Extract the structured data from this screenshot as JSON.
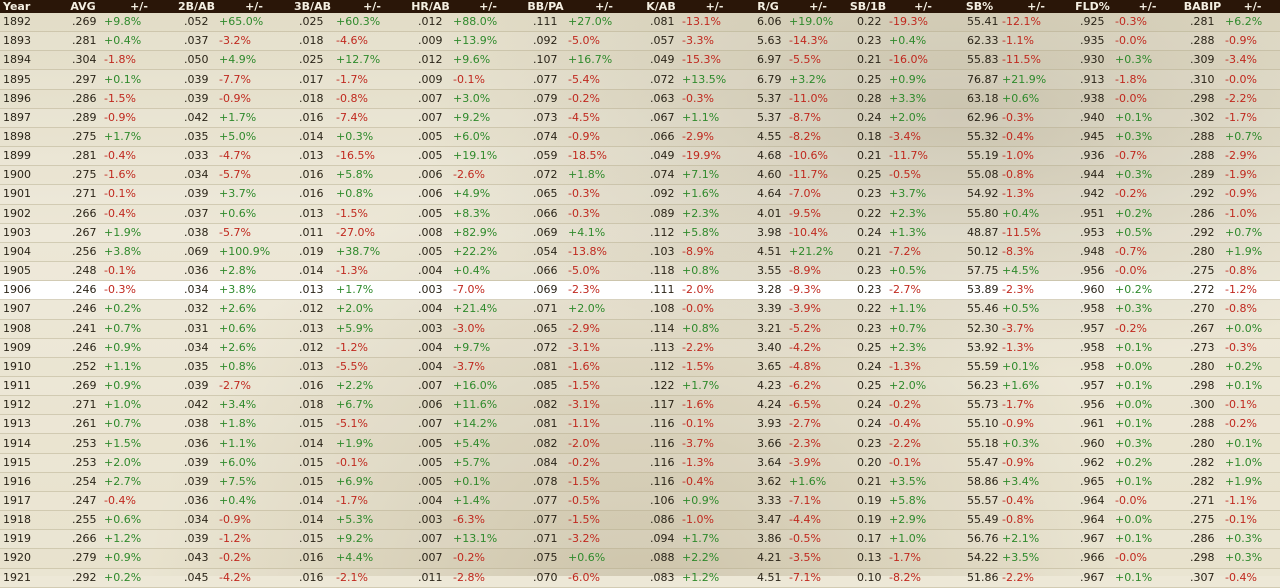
{
  "columns": [
    "Year",
    "AVG",
    "+/-",
    "2B/AB",
    "+/-",
    "3B/AB",
    "+/-",
    "HR/AB",
    "+/-",
    "BB/PA",
    "+/-",
    "K/AB",
    "+/-",
    "R/G",
    "+/-",
    "SB/1B",
    "+/-",
    "SB%",
    "+/-",
    "FLD%",
    "+/-",
    "BABIP",
    "+/-"
  ],
  "highlight_year": "1906",
  "colors": {
    "positive": "#2f8a2c",
    "negative": "#c0281e",
    "header_bg": "#2a1608"
  },
  "rows": [
    [
      "1892",
      ".269",
      "+9.8%",
      ".052",
      "+65.0%",
      ".025",
      "+60.3%",
      ".012",
      "+88.0%",
      ".111",
      "+27.0%",
      ".081",
      "-13.1%",
      "6.06",
      "+19.0%",
      "0.22",
      "-19.3%",
      "55.41",
      "-12.1%",
      ".925",
      "-0.3%",
      ".281",
      "+6.2%"
    ],
    [
      "1893",
      ".281",
      "+0.4%",
      ".037",
      "-3.2%",
      ".018",
      "-4.6%",
      ".009",
      "+13.9%",
      ".092",
      "-5.0%",
      ".057",
      "-3.3%",
      "5.63",
      "-14.3%",
      "0.23",
      "+0.4%",
      "62.33",
      "-1.1%",
      ".935",
      "-0.0%",
      ".288",
      "-0.9%"
    ],
    [
      "1894",
      ".304",
      "-1.8%",
      ".050",
      "+4.9%",
      ".025",
      "+12.7%",
      ".012",
      "+9.6%",
      ".107",
      "+16.7%",
      ".049",
      "-15.3%",
      "6.97",
      "-5.5%",
      "0.21",
      "-16.0%",
      "55.83",
      "-11.5%",
      ".930",
      "+0.3%",
      ".309",
      "-3.4%"
    ],
    [
      "1895",
      ".297",
      "+0.1%",
      ".039",
      "-7.7%",
      ".017",
      "-1.7%",
      ".009",
      "-0.1%",
      ".077",
      "-5.4%",
      ".072",
      "+13.5%",
      "6.79",
      "+3.2%",
      "0.25",
      "+0.9%",
      "76.87",
      "+21.9%",
      ".913",
      "-1.8%",
      ".310",
      "-0.0%"
    ],
    [
      "1896",
      ".286",
      "-1.5%",
      ".039",
      "-0.9%",
      ".018",
      "-0.8%",
      ".007",
      "+3.0%",
      ".079",
      "-0.2%",
      ".063",
      "-0.3%",
      "5.37",
      "-11.0%",
      "0.28",
      "+3.3%",
      "63.18",
      "+0.6%",
      ".938",
      "-0.0%",
      ".298",
      "-2.2%"
    ],
    [
      "1897",
      ".289",
      "-0.9%",
      ".042",
      "+1.7%",
      ".016",
      "-7.4%",
      ".007",
      "+9.2%",
      ".073",
      "-4.5%",
      ".067",
      "+1.1%",
      "5.37",
      "-8.7%",
      "0.24",
      "+2.0%",
      "62.96",
      "-0.3%",
      ".940",
      "+0.1%",
      ".302",
      "-1.7%"
    ],
    [
      "1898",
      ".275",
      "+1.7%",
      ".035",
      "+5.0%",
      ".014",
      "+0.3%",
      ".005",
      "+6.0%",
      ".074",
      "-0.9%",
      ".066",
      "-2.9%",
      "4.55",
      "-8.2%",
      "0.18",
      "-3.4%",
      "55.32",
      "-0.4%",
      ".945",
      "+0.3%",
      ".288",
      "+0.7%"
    ],
    [
      "1899",
      ".281",
      "-0.4%",
      ".033",
      "-4.7%",
      ".013",
      "-16.5%",
      ".005",
      "+19.1%",
      ".059",
      "-18.5%",
      ".049",
      "-19.9%",
      "4.68",
      "-10.6%",
      "0.21",
      "-11.7%",
      "55.19",
      "-1.0%",
      ".936",
      "-0.7%",
      ".288",
      "-2.9%"
    ],
    [
      "1900",
      ".275",
      "-1.6%",
      ".034",
      "-5.7%",
      ".016",
      "+5.8%",
      ".006",
      "-2.6%",
      ".072",
      "+1.8%",
      ".074",
      "+7.1%",
      "4.60",
      "-11.7%",
      "0.25",
      "-0.5%",
      "55.08",
      "-0.8%",
      ".944",
      "+0.3%",
      ".289",
      "-1.9%"
    ],
    [
      "1901",
      ".271",
      "-0.1%",
      ".039",
      "+3.7%",
      ".016",
      "+0.8%",
      ".006",
      "+4.9%",
      ".065",
      "-0.3%",
      ".092",
      "+1.6%",
      "4.64",
      "-7.0%",
      "0.23",
      "+3.7%",
      "54.92",
      "-1.3%",
      ".942",
      "-0.2%",
      ".292",
      "-0.9%"
    ],
    [
      "1902",
      ".266",
      "-0.4%",
      ".037",
      "+0.6%",
      ".013",
      "-1.5%",
      ".005",
      "+8.3%",
      ".066",
      "-0.3%",
      ".089",
      "+2.3%",
      "4.01",
      "-9.5%",
      "0.22",
      "+2.3%",
      "55.80",
      "+0.4%",
      ".951",
      "+0.2%",
      ".286",
      "-1.0%"
    ],
    [
      "1903",
      ".267",
      "+1.9%",
      ".038",
      "-5.7%",
      ".011",
      "-27.0%",
      ".008",
      "+82.9%",
      ".069",
      "+4.1%",
      ".112",
      "+5.8%",
      "3.98",
      "-10.4%",
      "0.24",
      "+1.3%",
      "48.87",
      "-11.5%",
      ".953",
      "+0.5%",
      ".292",
      "+0.7%"
    ],
    [
      "1904",
      ".256",
      "+3.8%",
      ".069",
      "+100.9%",
      ".019",
      "+38.7%",
      ".005",
      "+22.2%",
      ".054",
      "-13.8%",
      ".103",
      "-8.9%",
      "4.51",
      "+21.2%",
      "0.21",
      "-7.2%",
      "50.12",
      "-8.3%",
      ".948",
      "-0.7%",
      ".280",
      "+1.9%"
    ],
    [
      "1905",
      ".248",
      "-0.1%",
      ".036",
      "+2.8%",
      ".014",
      "-1.3%",
      ".004",
      "+0.4%",
      ".066",
      "-5.0%",
      ".118",
      "+0.8%",
      "3.55",
      "-8.9%",
      "0.23",
      "+0.5%",
      "57.75",
      "+4.5%",
      ".956",
      "-0.0%",
      ".275",
      "-0.8%"
    ],
    [
      "1906",
      ".246",
      "-0.3%",
      ".034",
      "+3.8%",
      ".013",
      "+1.7%",
      ".003",
      "-7.0%",
      ".069",
      "-2.3%",
      ".111",
      "-2.0%",
      "3.28",
      "-9.3%",
      "0.23",
      "-2.7%",
      "53.89",
      "-2.3%",
      ".960",
      "+0.2%",
      ".272",
      "-1.2%"
    ],
    [
      "1907",
      ".246",
      "+0.2%",
      ".032",
      "+2.6%",
      ".012",
      "+2.0%",
      ".004",
      "+21.4%",
      ".071",
      "+2.0%",
      ".108",
      "-0.0%",
      "3.39",
      "-3.9%",
      "0.22",
      "+1.1%",
      "55.46",
      "+0.5%",
      ".958",
      "+0.3%",
      ".270",
      "-0.8%"
    ],
    [
      "1908",
      ".241",
      "+0.7%",
      ".031",
      "+0.6%",
      ".013",
      "+5.9%",
      ".003",
      "-3.0%",
      ".065",
      "-2.9%",
      ".114",
      "+0.8%",
      "3.21",
      "-5.2%",
      "0.23",
      "+0.7%",
      "52.30",
      "-3.7%",
      ".957",
      "-0.2%",
      ".267",
      "+0.0%"
    ],
    [
      "1909",
      ".246",
      "+0.9%",
      ".034",
      "+2.6%",
      ".012",
      "-1.2%",
      ".004",
      "+9.7%",
      ".072",
      "-3.1%",
      ".113",
      "-2.2%",
      "3.40",
      "-4.2%",
      "0.25",
      "+2.3%",
      "53.92",
      "-1.3%",
      ".958",
      "+0.1%",
      ".273",
      "-0.3%"
    ],
    [
      "1910",
      ".252",
      "+1.1%",
      ".035",
      "+0.8%",
      ".013",
      "-5.5%",
      ".004",
      "-3.7%",
      ".081",
      "-1.6%",
      ".112",
      "-1.5%",
      "3.65",
      "-4.8%",
      "0.24",
      "-1.3%",
      "55.59",
      "+0.1%",
      ".958",
      "+0.0%",
      ".280",
      "+0.2%"
    ],
    [
      "1911",
      ".269",
      "+0.9%",
      ".039",
      "-2.7%",
      ".016",
      "+2.2%",
      ".007",
      "+16.0%",
      ".085",
      "-1.5%",
      ".122",
      "+1.7%",
      "4.23",
      "-6.2%",
      "0.25",
      "+2.0%",
      "56.23",
      "+1.6%",
      ".957",
      "+0.1%",
      ".298",
      "+0.1%"
    ],
    [
      "1912",
      ".271",
      "+1.0%",
      ".042",
      "+3.4%",
      ".018",
      "+6.7%",
      ".006",
      "+11.6%",
      ".082",
      "-3.1%",
      ".117",
      "-1.6%",
      "4.24",
      "-6.5%",
      "0.24",
      "-0.2%",
      "55.73",
      "-1.7%",
      ".956",
      "+0.0%",
      ".300",
      "-0.1%"
    ],
    [
      "1913",
      ".261",
      "+0.7%",
      ".038",
      "+1.8%",
      ".015",
      "-5.1%",
      ".007",
      "+14.2%",
      ".081",
      "-1.1%",
      ".116",
      "-0.1%",
      "3.93",
      "-2.7%",
      "0.24",
      "-0.4%",
      "55.10",
      "-0.9%",
      ".961",
      "+0.1%",
      ".288",
      "-0.2%"
    ],
    [
      "1914",
      ".253",
      "+1.5%",
      ".036",
      "+1.1%",
      ".014",
      "+1.9%",
      ".005",
      "+5.4%",
      ".082",
      "-2.0%",
      ".116",
      "-3.7%",
      "3.66",
      "-2.3%",
      "0.23",
      "-2.2%",
      "55.18",
      "+0.3%",
      ".960",
      "+0.3%",
      ".280",
      "+0.1%"
    ],
    [
      "1915",
      ".253",
      "+2.0%",
      ".039",
      "+6.0%",
      ".015",
      "-0.1%",
      ".005",
      "+5.7%",
      ".084",
      "-0.2%",
      ".116",
      "-1.3%",
      "3.64",
      "-3.9%",
      "0.20",
      "-0.1%",
      "55.47",
      "-0.9%",
      ".962",
      "+0.2%",
      ".282",
      "+1.0%"
    ],
    [
      "1916",
      ".254",
      "+2.7%",
      ".039",
      "+7.5%",
      ".015",
      "+6.9%",
      ".005",
      "+0.1%",
      ".078",
      "-1.5%",
      ".116",
      "-0.4%",
      "3.62",
      "+1.6%",
      "0.21",
      "+3.5%",
      "58.86",
      "+3.4%",
      ".965",
      "+0.1%",
      ".282",
      "+1.9%"
    ],
    [
      "1917",
      ".247",
      "-0.4%",
      ".036",
      "+0.4%",
      ".014",
      "-1.7%",
      ".004",
      "+1.4%",
      ".077",
      "-0.5%",
      ".106",
      "+0.9%",
      "3.33",
      "-7.1%",
      "0.19",
      "+5.8%",
      "55.57",
      "-0.4%",
      ".964",
      "-0.0%",
      ".271",
      "-1.1%"
    ],
    [
      "1918",
      ".255",
      "+0.6%",
      ".034",
      "-0.9%",
      ".014",
      "+5.3%",
      ".003",
      "-6.3%",
      ".077",
      "-1.5%",
      ".086",
      "-1.0%",
      "3.47",
      "-4.4%",
      "0.19",
      "+2.9%",
      "55.49",
      "-0.8%",
      ".964",
      "+0.0%",
      ".275",
      "-0.1%"
    ],
    [
      "1919",
      ".266",
      "+1.2%",
      ".039",
      "-1.2%",
      ".015",
      "+9.2%",
      ".007",
      "+13.1%",
      ".071",
      "-3.2%",
      ".094",
      "+1.7%",
      "3.86",
      "-0.5%",
      "0.17",
      "+1.0%",
      "56.76",
      "+2.1%",
      ".967",
      "+0.1%",
      ".286",
      "+0.3%"
    ],
    [
      "1920",
      ".279",
      "+0.9%",
      ".043",
      "-0.2%",
      ".016",
      "+4.4%",
      ".007",
      "-0.2%",
      ".075",
      "+0.6%",
      ".088",
      "+2.2%",
      "4.21",
      "-3.5%",
      "0.13",
      "-1.7%",
      "54.22",
      "+3.5%",
      ".966",
      "-0.0%",
      ".298",
      "+0.3%"
    ],
    [
      "1921",
      ".292",
      "+0.2%",
      ".045",
      "-4.2%",
      ".016",
      "-2.1%",
      ".011",
      "-2.8%",
      ".070",
      "-6.0%",
      ".083",
      "+1.2%",
      "4.51",
      "-7.1%",
      "0.10",
      "-8.2%",
      "51.86",
      "-2.2%",
      ".967",
      "+0.1%",
      ".307",
      "-0.4%"
    ]
  ]
}
